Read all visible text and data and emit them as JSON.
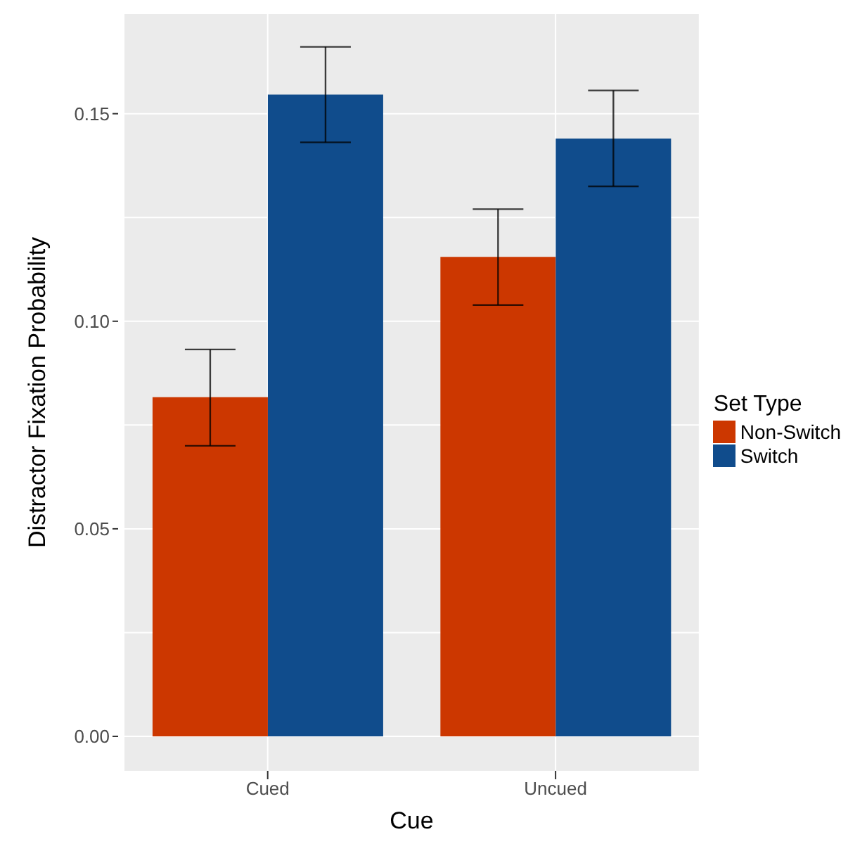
{
  "chart_data": {
    "type": "bar",
    "xlabel": "Cue",
    "ylabel": "Distractor Fixation Probability",
    "legend_title": "Set Type",
    "categories": [
      "Cued",
      "Uncued"
    ],
    "series": [
      {
        "name": "Non-Switch",
        "color": "#cc3700",
        "values": [
          0.0817,
          0.1155
        ],
        "errors": [
          [
            0.07,
            0.0932
          ],
          [
            0.1039,
            0.127
          ]
        ]
      },
      {
        "name": "Switch",
        "color": "#104c8c",
        "values": [
          0.1546,
          0.144
        ],
        "errors": [
          [
            0.1431,
            0.1661
          ],
          [
            0.1325,
            0.1556
          ]
        ]
      }
    ],
    "ylim": [
      -0.0083,
      0.174
    ],
    "yticks": [
      {
        "value": 0,
        "label": "0.00"
      },
      {
        "value": 0.025,
        "label": null
      },
      {
        "value": 0.05,
        "label": "0.05"
      },
      {
        "value": 0.075,
        "label": null
      },
      {
        "value": 0.1,
        "label": "0.10"
      },
      {
        "value": 0.125,
        "label": null
      },
      {
        "value": 0.15,
        "label": "0.15"
      }
    ],
    "grid": true,
    "legend": "right"
  }
}
